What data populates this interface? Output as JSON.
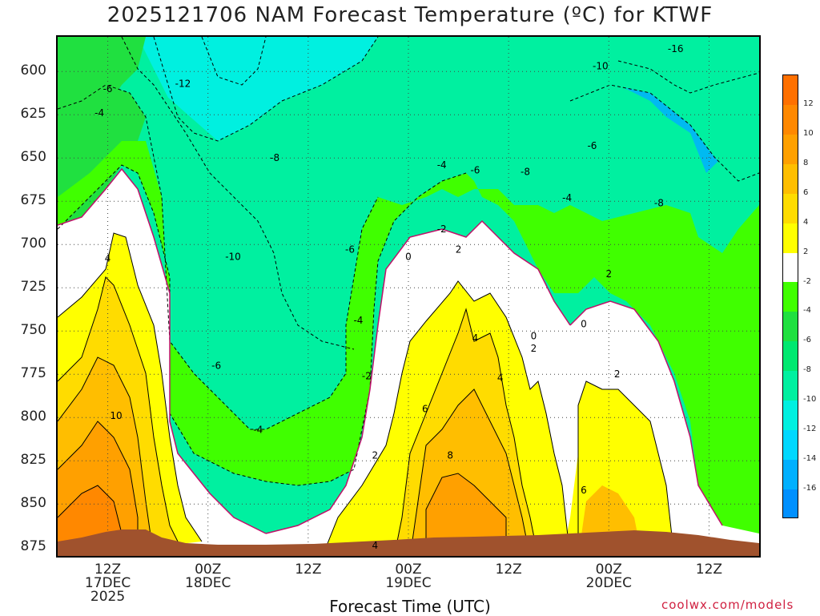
{
  "title": "2025121706 NAM Forecast Temperature (ºC) for KTWF",
  "credit": "coolwx.com/models",
  "chart_data": {
    "type": "heatmap",
    "title": "2025121706 NAM Forecast Temperature (ºC) for KTWF",
    "xlabel": "Forecast Time (UTC)",
    "ylabel": "",
    "y_axis": {
      "ticks": [
        600,
        625,
        650,
        675,
        700,
        725,
        750,
        775,
        800,
        825,
        850,
        875
      ],
      "range": [
        880,
        580
      ]
    },
    "x_ticks": [
      {
        "label": "12Z",
        "sub": "17DEC",
        "sub2": "2025",
        "hours": 6
      },
      {
        "label": "00Z",
        "sub": "18DEC",
        "sub2": "",
        "hours": 18
      },
      {
        "label": "12Z",
        "sub": "",
        "sub2": "",
        "hours": 30
      },
      {
        "label": "00Z",
        "sub": "19DEC",
        "sub2": "",
        "hours": 42
      },
      {
        "label": "12Z",
        "sub": "",
        "sub2": "",
        "hours": 54
      },
      {
        "label": "00Z",
        "sub": "20DEC",
        "sub2": "",
        "hours": 66
      },
      {
        "label": "12Z",
        "sub": "",
        "sub2": "",
        "hours": 78
      }
    ],
    "x_range_hours": [
      0,
      84
    ],
    "colorbar": {
      "labels": [
        "12",
        "10",
        "8",
        "6",
        "4",
        "2",
        "-2",
        "-4",
        "-6",
        "-8",
        "-10",
        "-12",
        "-14",
        "-16"
      ],
      "colors": [
        "#ff7000",
        "#ff8800",
        "#ffa000",
        "#ffbe00",
        "#ffdc00",
        "#ffff00",
        "#ffffff",
        "#40ff00",
        "#20e040",
        "#00e870",
        "#00f0a0",
        "#00f0e0",
        "#00d8ff",
        "#00b0ff",
        "#0090ff"
      ]
    },
    "contour_labels": [
      {
        "text": "-16",
        "hours": 74,
        "p": 587
      },
      {
        "text": "-12",
        "hours": 15,
        "p": 607
      },
      {
        "text": "-10",
        "hours": 65,
        "p": 597
      },
      {
        "text": "-8",
        "hours": 26,
        "p": 650
      },
      {
        "text": "-8",
        "hours": 56,
        "p": 658
      },
      {
        "text": "-8",
        "hours": 72,
        "p": 676
      },
      {
        "text": "-6",
        "hours": 6,
        "p": 610
      },
      {
        "text": "-6",
        "hours": 50,
        "p": 657
      },
      {
        "text": "-6",
        "hours": 64,
        "p": 643
      },
      {
        "text": "-6",
        "hours": 35,
        "p": 703
      },
      {
        "text": "-6",
        "hours": 19,
        "p": 770
      },
      {
        "text": "-4",
        "hours": 5,
        "p": 624
      },
      {
        "text": "-4",
        "hours": 46,
        "p": 654
      },
      {
        "text": "-4",
        "hours": 61,
        "p": 673
      },
      {
        "text": "-4",
        "hours": 36,
        "p": 744
      },
      {
        "text": "-4",
        "hours": 24,
        "p": 807
      },
      {
        "text": "-2",
        "hours": 46,
        "p": 691
      },
      {
        "text": "-2",
        "hours": 37,
        "p": 776
      },
      {
        "text": "-10",
        "hours": 21,
        "p": 707
      },
      {
        "text": "0",
        "hours": 42,
        "p": 707
      },
      {
        "text": "0",
        "hours": 57,
        "p": 753
      },
      {
        "text": "0",
        "hours": 63,
        "p": 746
      },
      {
        "text": "2",
        "hours": 48,
        "p": 703
      },
      {
        "text": "2",
        "hours": 66,
        "p": 717
      },
      {
        "text": "2",
        "hours": 57,
        "p": 760
      },
      {
        "text": "2",
        "hours": 67,
        "p": 775
      },
      {
        "text": "2",
        "hours": 38,
        "p": 822
      },
      {
        "text": "4",
        "hours": 6,
        "p": 708
      },
      {
        "text": "4",
        "hours": 50,
        "p": 754
      },
      {
        "text": "4",
        "hours": 53,
        "p": 777
      },
      {
        "text": "4",
        "hours": 38,
        "p": 874
      },
      {
        "text": "6",
        "hours": 44,
        "p": 795
      },
      {
        "text": "6",
        "hours": 63,
        "p": 842
      },
      {
        "text": "8",
        "hours": 47,
        "p": 822
      },
      {
        "text": "10",
        "hours": 7,
        "p": 799
      }
    ]
  }
}
